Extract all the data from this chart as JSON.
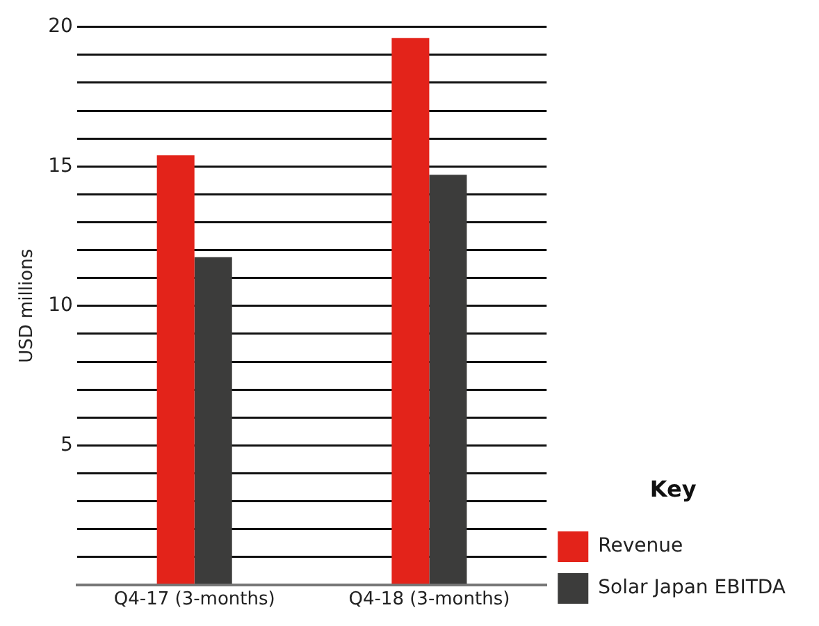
{
  "chart_data": {
    "type": "bar",
    "ylabel": "USD millions",
    "legend_title": "Key",
    "categories": [
      "Q4-17 (3-months)",
      "Q4-18 (3-months)"
    ],
    "series": [
      {
        "name": "Revenue",
        "color": "#e3231a",
        "values": [
          15.4,
          19.6
        ]
      },
      {
        "name": "Solar Japan EBITDA",
        "color": "#3c3c3b",
        "values": [
          11.75,
          14.7
        ]
      }
    ],
    "ylim": [
      0,
      20
    ],
    "yticks": [
      {
        "value": 0,
        "label": null
      },
      {
        "value": 1,
        "label": null
      },
      {
        "value": 2,
        "label": null
      },
      {
        "value": 3,
        "label": null
      },
      {
        "value": 4,
        "label": null
      },
      5,
      {
        "value": 6,
        "label": null
      },
      {
        "value": 7,
        "label": null
      },
      {
        "value": 8,
        "label": null
      },
      {
        "value": 9,
        "label": null
      },
      10,
      {
        "value": 11,
        "label": null
      },
      {
        "value": 12,
        "label": null
      },
      {
        "value": 13,
        "label": null
      },
      {
        "value": 14,
        "label": null
      },
      15,
      {
        "value": 16,
        "label": null
      },
      {
        "value": 17,
        "label": null
      },
      {
        "value": 18,
        "label": null
      },
      {
        "value": 19,
        "label": null
      },
      20
    ],
    "grid": "y",
    "legend": "bottom right"
  }
}
